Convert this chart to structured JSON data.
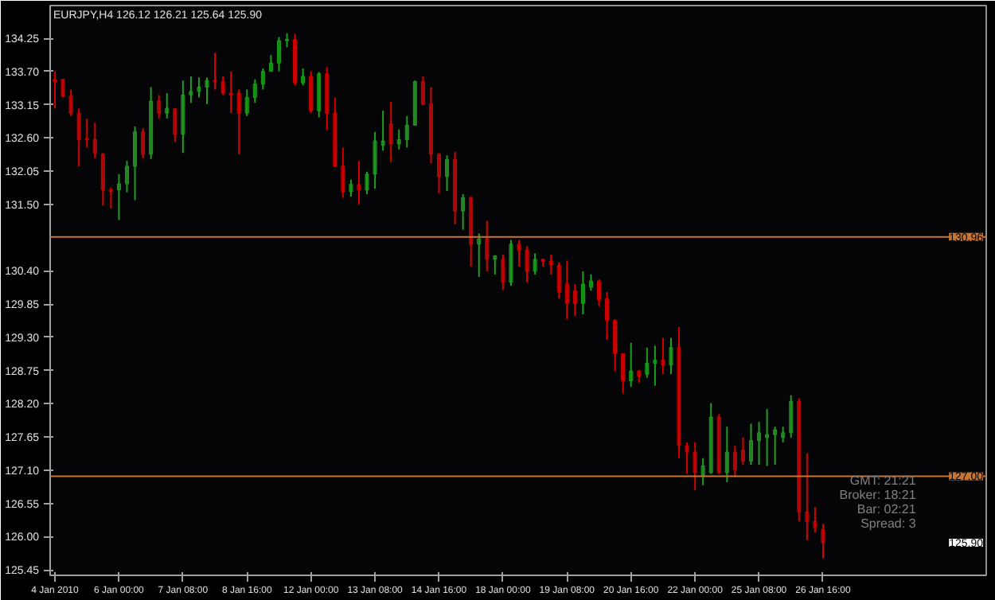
{
  "chart_data": {
    "type": "candlestick",
    "title": "EURJPY,H4  126.12 126.21 125.64 125.90",
    "categories": [
      "4 Jan 2010",
      null,
      null,
      null,
      null,
      null,
      null,
      null,
      "6 Jan 00:00",
      null,
      null,
      null,
      null,
      null,
      null,
      null,
      "7 Jan 08:00",
      null,
      null,
      null,
      null,
      null,
      null,
      null,
      "8 Jan 16:00",
      null,
      null,
      null,
      null,
      null,
      null,
      null,
      "12 Jan 00:00",
      null,
      null,
      null,
      null,
      null,
      null,
      null,
      "13 Jan 08:00",
      null,
      null,
      null,
      null,
      null,
      null,
      null,
      "14 Jan 16:00",
      null,
      null,
      null,
      null,
      null,
      null,
      null,
      "18 Jan 00:00",
      null,
      null,
      null,
      null,
      null,
      null,
      null,
      "19 Jan 08:00",
      null,
      null,
      null,
      null,
      null,
      null,
      null,
      "20 Jan 16:00",
      null,
      null,
      null,
      null,
      null,
      null,
      null,
      "22 Jan 00:00",
      null,
      null,
      null,
      null,
      null,
      null,
      null,
      "25 Jan 08:00",
      null,
      null,
      null,
      null,
      null,
      null,
      null,
      "26 Jan 16:00"
    ],
    "ohlc": [
      [
        133.57,
        133.7,
        133.09,
        133.53
      ],
      [
        133.57,
        133.57,
        133.27,
        133.29
      ],
      [
        133.29,
        133.4,
        132.96,
        133.01
      ],
      [
        133.01,
        133.09,
        132.13,
        132.57
      ],
      [
        132.59,
        132.92,
        132.44,
        132.57
      ],
      [
        132.57,
        132.85,
        132.26,
        132.35
      ],
      [
        132.33,
        132.35,
        131.48,
        131.74
      ],
      [
        131.74,
        131.78,
        131.43,
        131.71
      ],
      [
        131.74,
        132.0,
        131.24,
        131.84
      ],
      [
        131.84,
        132.22,
        131.7,
        132.13
      ],
      [
        132.13,
        132.79,
        131.57,
        132.7
      ],
      [
        132.7,
        132.76,
        132.26,
        132.33
      ],
      [
        132.33,
        133.44,
        132.25,
        133.21
      ],
      [
        133.21,
        133.31,
        132.92,
        133.01
      ],
      [
        133.01,
        133.34,
        132.92,
        133.09
      ],
      [
        133.08,
        133.09,
        132.53,
        132.66
      ],
      [
        132.66,
        133.55,
        132.35,
        133.31
      ],
      [
        133.31,
        133.62,
        133.18,
        133.37
      ],
      [
        133.37,
        133.6,
        133.27,
        133.44
      ],
      [
        133.44,
        133.6,
        133.16,
        133.55
      ],
      [
        133.55,
        134.01,
        133.4,
        133.53
      ],
      [
        133.53,
        133.62,
        133.31,
        133.34
      ],
      [
        133.34,
        133.7,
        133.01,
        133.31
      ],
      [
        133.34,
        133.4,
        132.33,
        133.01
      ],
      [
        133.01,
        133.4,
        132.96,
        133.27
      ],
      [
        133.27,
        133.57,
        133.18,
        133.49
      ],
      [
        133.49,
        133.75,
        133.4,
        133.7
      ],
      [
        133.7,
        133.97,
        133.7,
        133.84
      ],
      [
        133.84,
        134.27,
        133.7,
        134.21
      ],
      [
        134.21,
        134.33,
        134.1,
        134.23
      ],
      [
        134.23,
        134.32,
        133.47,
        133.51
      ],
      [
        133.51,
        133.75,
        133.47,
        133.62
      ],
      [
        133.62,
        133.7,
        133.01,
        133.05
      ],
      [
        133.05,
        133.69,
        132.94,
        133.66
      ],
      [
        133.66,
        133.77,
        132.73,
        133.01
      ],
      [
        133.01,
        133.27,
        132.12,
        132.13
      ],
      [
        132.13,
        132.44,
        131.61,
        131.71
      ],
      [
        131.71,
        131.91,
        131.63,
        131.83
      ],
      [
        131.83,
        132.22,
        131.5,
        131.74
      ],
      [
        131.74,
        132.04,
        131.67,
        132.0
      ],
      [
        132.0,
        132.7,
        131.76,
        132.55
      ],
      [
        132.48,
        133.05,
        132.39,
        132.55
      ],
      [
        132.83,
        133.2,
        132.2,
        132.5
      ],
      [
        132.5,
        132.74,
        132.41,
        132.57
      ],
      [
        132.57,
        132.96,
        132.44,
        132.81
      ],
      [
        132.81,
        133.55,
        132.81,
        133.53
      ],
      [
        133.53,
        133.62,
        133.14,
        133.16
      ],
      [
        133.16,
        133.44,
        132.18,
        132.33
      ],
      [
        132.33,
        132.35,
        131.68,
        131.96
      ],
      [
        131.96,
        132.31,
        131.72,
        132.24
      ],
      [
        132.24,
        132.37,
        131.17,
        131.39
      ],
      [
        131.39,
        131.67,
        131.08,
        131.61
      ],
      [
        131.61,
        131.63,
        130.47,
        130.84
      ],
      [
        130.84,
        131.02,
        130.3,
        130.93
      ],
      [
        130.93,
        131.23,
        130.39,
        130.59
      ],
      [
        130.59,
        130.65,
        130.34,
        130.65
      ],
      [
        130.59,
        130.67,
        130.08,
        130.21
      ],
      [
        130.21,
        130.91,
        130.15,
        130.84
      ],
      [
        130.84,
        130.91,
        130.47,
        130.74
      ],
      [
        130.74,
        130.81,
        130.21,
        130.39
      ],
      [
        130.39,
        130.69,
        130.34,
        130.59
      ],
      [
        130.59,
        130.6,
        130.47,
        130.56
      ],
      [
        130.56,
        130.67,
        130.34,
        130.5
      ],
      [
        130.49,
        130.54,
        129.94,
        130.05
      ],
      [
        130.18,
        130.57,
        129.6,
        129.86
      ],
      [
        130.07,
        130.18,
        129.65,
        129.86
      ],
      [
        129.86,
        130.39,
        129.68,
        130.18
      ],
      [
        130.13,
        130.34,
        130.07,
        130.23
      ],
      [
        130.23,
        130.26,
        129.81,
        129.92
      ],
      [
        129.94,
        130.05,
        129.26,
        129.58
      ],
      [
        129.58,
        129.6,
        128.74,
        129.03
      ],
      [
        129.03,
        129.03,
        128.37,
        128.58
      ],
      [
        128.58,
        129.21,
        128.48,
        128.74
      ],
      [
        128.74,
        128.76,
        128.55,
        128.66
      ],
      [
        128.69,
        129.13,
        128.63,
        128.87
      ],
      [
        128.87,
        129.16,
        128.5,
        128.92
      ],
      [
        128.92,
        129.29,
        128.69,
        128.84
      ],
      [
        128.84,
        129.29,
        128.69,
        129.13
      ],
      [
        129.13,
        129.47,
        127.3,
        127.51
      ],
      [
        127.51,
        127.56,
        127.04,
        127.4
      ],
      [
        127.4,
        127.56,
        126.77,
        127.06
      ],
      [
        127.01,
        127.3,
        126.85,
        127.17
      ],
      [
        127.06,
        128.21,
        127.04,
        127.98
      ],
      [
        127.98,
        128.03,
        127.04,
        127.06
      ],
      [
        127.06,
        127.82,
        126.9,
        127.4
      ],
      [
        127.4,
        127.51,
        126.98,
        127.11
      ],
      [
        127.43,
        127.64,
        127.19,
        127.25
      ],
      [
        127.25,
        127.87,
        127.19,
        127.59
      ],
      [
        127.59,
        127.9,
        127.19,
        127.72
      ],
      [
        127.64,
        128.11,
        127.17,
        127.69
      ],
      [
        127.69,
        127.82,
        127.19,
        127.77
      ],
      [
        127.64,
        127.82,
        127.56,
        127.72
      ],
      [
        127.72,
        128.34,
        127.64,
        128.24
      ],
      [
        128.24,
        128.29,
        126.25,
        126.41
      ],
      [
        126.41,
        127.38,
        125.94,
        126.25
      ],
      [
        126.25,
        126.49,
        126.07,
        126.15
      ],
      [
        126.12,
        126.21,
        125.64,
        125.9
      ]
    ],
    "colors": [
      "#d40000",
      "#d40000",
      "#d40000",
      "#d40000",
      "#d40000",
      "#d40000",
      "#d40000",
      "#d40000",
      "#1e9e1e",
      "#1e9e1e",
      "#1e9e1e",
      "#d40000",
      "#1e9e1e",
      "#d40000",
      "#1e9e1e",
      "#d40000",
      "#1e9e1e",
      "#1e9e1e",
      "#1e9e1e",
      "#1e9e1e",
      "#d40000",
      "#d40000",
      "#d40000",
      "#d40000",
      "#1e9e1e",
      "#1e9e1e",
      "#1e9e1e",
      "#1e9e1e",
      "#1e9e1e",
      "#1e9e1e",
      "#d40000",
      "#1e9e1e",
      "#d40000",
      "#1e9e1e",
      "#d40000",
      "#d40000",
      "#d40000",
      "#1e9e1e",
      "#d40000",
      "#1e9e1e",
      "#1e9e1e",
      "#1e9e1e",
      "#d40000",
      "#1e9e1e",
      "#1e9e1e",
      "#1e9e1e",
      "#d40000",
      "#d40000",
      "#d40000",
      "#1e9e1e",
      "#d40000",
      "#1e9e1e",
      "#d40000",
      "#1e9e1e",
      "#d40000",
      "#1e9e1e",
      "#d40000",
      "#1e9e1e",
      "#d40000",
      "#d40000",
      "#1e9e1e",
      "#d40000",
      "#d40000",
      "#d40000",
      "#d40000",
      "#d40000",
      "#1e9e1e",
      "#1e9e1e",
      "#d40000",
      "#d40000",
      "#d40000",
      "#d40000",
      "#1e9e1e",
      "#d40000",
      "#1e9e1e",
      "#1e9e1e",
      "#d40000",
      "#1e9e1e",
      "#d40000",
      "#d40000",
      "#d40000",
      "#1e9e1e",
      "#1e9e1e",
      "#d40000",
      "#1e9e1e",
      "#d40000",
      "#d40000",
      "#1e9e1e",
      "#1e9e1e",
      "#1e9e1e",
      "#1e9e1e",
      "#1e9e1e",
      "#1e9e1e",
      "#d40000",
      "#d40000",
      "#d40000",
      "#d40000"
    ],
    "ylim": [
      125.36,
      134.79
    ],
    "yticks": [
      134.25,
      {
        "value": 133.7,
        "label": "133.70"
      },
      133.15,
      {
        "value": 132.6,
        "label": "132.60"
      },
      132.05,
      {
        "value": 131.5,
        "label": "131.50"
      },
      {
        "value": 130.4,
        "label": "130.40"
      },
      129.85,
      {
        "value": 129.3,
        "label": "129.30"
      },
      128.75,
      {
        "value": 128.2,
        "label": "128.20"
      },
      127.65,
      {
        "value": 127.1,
        "label": "127.10"
      },
      126.55,
      {
        "value": 126.0,
        "label": "126.00"
      },
      125.45
    ],
    "ref_lines": [
      {
        "axis": "y",
        "value": 130.96,
        "label": "130.96",
        "color": "#c87533"
      },
      {
        "axis": "y",
        "value": 127.0,
        "label": "127.00",
        "color": "#c87533"
      }
    ],
    "annotations": [
      "125.90",
      "GMT:  21:21",
      "Broker:  18:21",
      "Bar:  02:21",
      "Spread:  3"
    ],
    "grid": false
  }
}
